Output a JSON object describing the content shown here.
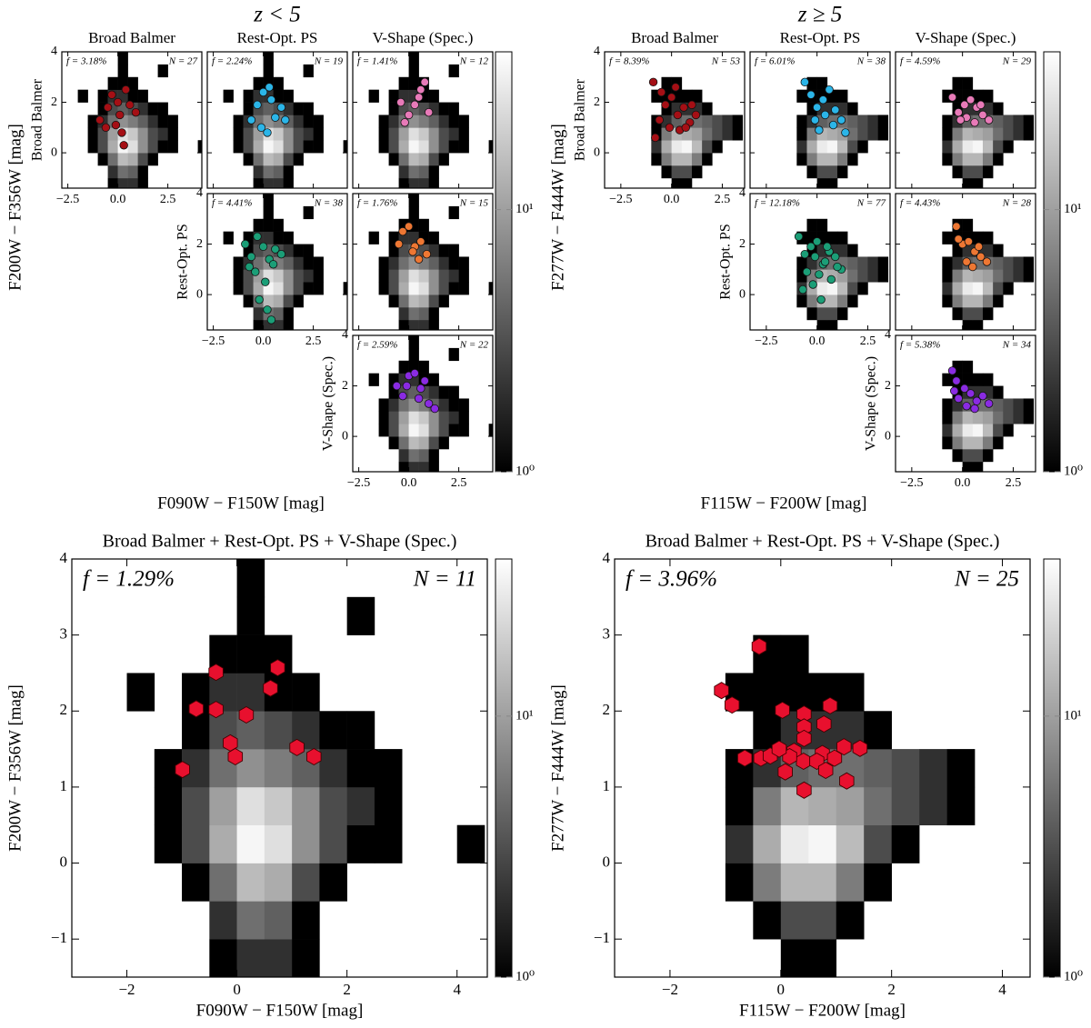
{
  "chart_data": [
    {
      "type": "heatmap",
      "title": "z < 5",
      "columns": [
        "Broad Balmer",
        "Rest-Opt. PS",
        "V-Shape (Spec.)"
      ],
      "xlabel": "F090W − F150W [mag]",
      "ylabel": "F200W − F356W [mag]",
      "xbins": [
        -2.5,
        -2,
        -1.5,
        -1,
        -0.5,
        0,
        0.5,
        1,
        1.5,
        2,
        2.5,
        3,
        3.5,
        4,
        4.5
      ],
      "ybins": [
        -1.5,
        -1,
        -0.5,
        0,
        0.5,
        1,
        1.5,
        2,
        2.5,
        3,
        3.5,
        4
      ],
      "counts": [
        [
          0,
          0,
          0,
          0,
          1,
          2,
          2,
          1,
          0,
          0,
          0,
          0,
          0,
          0
        ],
        [
          0,
          0,
          0,
          0,
          2,
          5,
          4,
          1,
          0,
          0,
          0,
          0,
          0,
          0
        ],
        [
          0,
          0,
          0,
          1,
          5,
          15,
          12,
          3,
          1,
          0,
          0,
          0,
          0,
          0
        ],
        [
          0,
          0,
          1,
          3,
          12,
          35,
          25,
          8,
          3,
          1,
          1,
          0,
          0,
          1
        ],
        [
          0,
          0,
          1,
          3,
          10,
          25,
          18,
          8,
          3,
          2,
          1,
          0,
          0,
          0
        ],
        [
          0,
          0,
          1,
          2,
          5,
          8,
          6,
          4,
          2,
          1,
          1,
          0,
          0,
          0
        ],
        [
          0,
          0,
          0,
          1,
          3,
          4,
          3,
          2,
          1,
          1,
          0,
          0,
          0,
          0
        ],
        [
          0,
          1,
          0,
          1,
          2,
          2,
          1,
          1,
          0,
          0,
          0,
          0,
          0,
          0
        ],
        [
          0,
          0,
          0,
          0,
          1,
          1,
          1,
          0,
          0,
          0,
          0,
          0,
          0,
          0
        ],
        [
          0,
          0,
          0,
          0,
          0,
          1,
          0,
          0,
          0,
          1,
          0,
          0,
          0,
          0
        ],
        [
          0,
          0,
          0,
          0,
          0,
          1,
          0,
          0,
          0,
          0,
          0,
          0,
          0,
          0
        ]
      ],
      "log_color": true,
      "clim": [
        1,
        40
      ],
      "cticks": [
        {
          "value": 1,
          "label": "10⁰"
        },
        {
          "value": 10,
          "label": "10¹"
        }
      ],
      "small": {
        "xlim": [
          -2.8,
          4.2
        ],
        "ylim": [
          -1.4,
          4
        ],
        "xticks": [
          {
            "value": -2.5,
            "label": "−2.5"
          },
          {
            "value": 0,
            "label": "0.0"
          },
          2.5
        ],
        "yticks": [
          0,
          2,
          4
        ],
        "grid": [
          [
            {
              "color": "#a50f15",
              "f": "f = 3.18%",
              "N": "N = 27",
              "x": [
                -0.9,
                -0.5,
                -0.3,
                0.1,
                0.4,
                0.6,
                -0.1,
                0.2,
                0.9,
                -0.6,
                0.3,
                0.0
              ],
              "y": [
                1.3,
                1.8,
                2.3,
                1.5,
                2.5,
                1.9,
                1.1,
                0.8,
                1.6,
                1.0,
                0.3,
                2.0
              ]
            },
            {
              "color": "#2bb5e8",
              "f": "f = 2.24%",
              "N": "N = 19",
              "x": [
                -0.6,
                -0.3,
                0,
                0.3,
                0.6,
                0.9,
                -0.1,
                0.4,
                1.1,
                0.2
              ],
              "y": [
                1.3,
                1.9,
                2.4,
                2.6,
                1.4,
                1.8,
                1.0,
                2.1,
                1.3,
                0.8
              ]
            },
            {
              "color": "#e87ab8",
              "f": "f = 1.41%",
              "N": "N = 12",
              "x": [
                -0.4,
                0.0,
                0.6,
                0.8,
                0.3,
                -0.2,
                1.0,
                0.5
              ],
              "y": [
                2.0,
                1.5,
                2.5,
                2.8,
                1.9,
                1.2,
                1.6,
                2.2
              ]
            }
          ],
          [
            {
              "color": "#1b9e77",
              "f": "f = 4.41%",
              "N": "N = 38",
              "x": [
                -0.9,
                -0.6,
                -0.3,
                0,
                0.3,
                0.6,
                -0.4,
                0.1,
                0.5,
                -0.2,
                0.2,
                0.9,
                -0.7,
                0.4
              ],
              "y": [
                2.0,
                1.5,
                2.3,
                1.9,
                1.4,
                1.8,
                0.9,
                0.5,
                1.2,
                -0.2,
                -0.6,
                1.6,
                1.1,
                -1.0
              ]
            },
            {
              "color": "#ee7733",
              "f": "f = 1.76%",
              "N": "N = 15",
              "x": [
                -0.3,
                0,
                0.3,
                0.6,
                0.9,
                -0.5,
                0.5,
                0.2
              ],
              "y": [
                2.5,
                2.7,
                1.9,
                2.1,
                1.6,
                2.0,
                1.4,
                1.7
              ]
            }
          ],
          [
            {
              "color": "#8a2be2",
              "f": "f = 2.59%",
              "N": "N = 22",
              "x": [
                -0.6,
                -0.3,
                0,
                0.3,
                0.6,
                1.0,
                1.3,
                0.5,
                0.8,
                -0.1
              ],
              "y": [
                2.0,
                1.6,
                2.4,
                2.5,
                1.9,
                1.3,
                1.1,
                1.5,
                2.2,
                2.0
              ]
            }
          ]
        ]
      },
      "combined": {
        "title": "Broad Balmer + Rest-Opt. PS + V-Shape (Spec.)",
        "f": "f = 1.29%",
        "N": "N = 11",
        "color": "#e8102e",
        "xlim": [
          -3,
          4.55
        ],
        "ylim": [
          -1.5,
          4
        ],
        "xticks": [
          {
            "value": -2,
            "label": "−2"
          },
          0,
          2,
          4
        ],
        "yticks": [
          {
            "value": -1,
            "label": "−1"
          },
          0,
          1,
          2,
          3,
          4
        ],
        "x": [
          -0.38,
          0.74,
          0.61,
          -0.74,
          -0.38,
          0.17,
          -0.12,
          -0.03,
          1.09,
          1.4,
          -0.99
        ],
        "y": [
          2.51,
          2.57,
          2.3,
          2.03,
          2.02,
          1.95,
          1.58,
          1.4,
          1.52,
          1.4,
          1.23
        ]
      }
    },
    {
      "type": "heatmap",
      "title": "z ≥ 5",
      "columns": [
        "Broad Balmer",
        "Rest-Opt. PS",
        "V-Shape (Spec.)"
      ],
      "xlabel": "F115W − F200W [mag]",
      "ylabel": "F277W − F444W [mag]",
      "xbins": [
        -2.5,
        -2,
        -1.5,
        -1,
        -0.5,
        0,
        0.5,
        1,
        1.5,
        2,
        2.5,
        3,
        3.5,
        4,
        4.5
      ],
      "ybins": [
        -1.5,
        -1,
        -0.5,
        0,
        0.5,
        1,
        1.5,
        2,
        2.5,
        3,
        3.5,
        4
      ],
      "counts": [
        [
          0,
          0,
          0,
          0,
          0,
          1,
          1,
          0,
          0,
          0,
          0,
          0,
          0,
          0
        ],
        [
          0,
          0,
          0,
          0,
          1,
          3,
          3,
          1,
          0,
          0,
          0,
          0,
          0,
          0
        ],
        [
          0,
          0,
          0,
          1,
          6,
          14,
          14,
          6,
          1,
          0,
          0,
          0,
          0,
          0
        ],
        [
          0,
          0,
          0,
          2,
          12,
          30,
          35,
          15,
          3,
          1,
          0,
          0,
          0,
          0
        ],
        [
          0,
          0,
          0,
          1,
          6,
          14,
          12,
          10,
          5,
          3,
          2,
          1,
          0,
          0
        ],
        [
          0,
          0,
          0,
          1,
          2,
          4,
          5,
          5,
          4,
          3,
          2,
          1,
          0,
          0
        ],
        [
          0,
          0,
          0,
          0,
          1,
          2,
          2,
          2,
          1,
          0,
          0,
          0,
          0,
          0
        ],
        [
          0,
          0,
          0,
          1,
          1,
          1,
          1,
          1,
          0,
          0,
          0,
          0,
          0,
          0
        ],
        [
          0,
          0,
          0,
          0,
          1,
          1,
          0,
          0,
          0,
          0,
          0,
          0,
          0,
          0
        ],
        [
          0,
          0,
          0,
          0,
          0,
          0,
          0,
          0,
          0,
          0,
          0,
          0,
          0,
          0
        ],
        [
          0,
          0,
          0,
          0,
          0,
          0,
          0,
          0,
          0,
          0,
          0,
          0,
          0,
          0
        ]
      ],
      "log_color": true,
      "clim": [
        1,
        40
      ],
      "cticks": [
        {
          "value": 1,
          "label": "10⁰"
        },
        {
          "value": 10,
          "label": "10¹"
        }
      ],
      "small": {
        "xlim": [
          -3.3,
          3.6
        ],
        "ylim": [
          -1.4,
          4
        ],
        "xticks": [
          {
            "value": -2.5,
            "label": "−2.5"
          },
          {
            "value": 0,
            "label": "0.0"
          },
          2.5
        ],
        "yticks": [
          0,
          2,
          4
        ],
        "grid": [
          [
            {
              "color": "#a50f15",
              "f": "f = 8.39%",
              "N": "N = 53",
              "x": [
                -0.9,
                -0.5,
                -0.3,
                0,
                0.3,
                0.6,
                0.9,
                1.2,
                -0.6,
                -0.1,
                0.4,
                0.7,
                -0.8,
                0.2,
                1.0
              ],
              "y": [
                2.8,
                2.4,
                1.9,
                2.2,
                1.5,
                1.8,
                1.2,
                1.5,
                1.3,
                1.0,
                0.9,
                1.0,
                0.6,
                2.6,
                1.9
              ]
            },
            {
              "color": "#2bb5e8",
              "f": "f = 6.01%",
              "N": "N = 38",
              "x": [
                -0.6,
                -0.3,
                0,
                0.3,
                0.6,
                0.9,
                1.2,
                -0.1,
                0.4,
                0.8,
                0.1,
                1.4
              ],
              "y": [
                2.8,
                2.3,
                1.8,
                2.1,
                2.5,
                1.7,
                1.3,
                1.3,
                1.5,
                1.1,
                0.9,
                0.8
              ]
            },
            {
              "color": "#e87ab8",
              "f": "f = 4.59%",
              "N": "N = 29",
              "x": [
                -0.5,
                -0.2,
                0.1,
                0.4,
                0.7,
                1.0,
                1.3,
                0.2,
                0.6,
                0.9,
                -0.1
              ],
              "y": [
                2.2,
                1.6,
                1.9,
                2.1,
                1.8,
                1.5,
                1.3,
                1.4,
                1.2,
                1.9,
                1.3
              ]
            }
          ],
          [
            {
              "color": "#1b9e77",
              "f": "f = 12.18%",
              "N": "N = 77",
              "x": [
                -0.9,
                -0.6,
                -0.3,
                0,
                0.3,
                0.6,
                0.9,
                1.2,
                -0.5,
                -0.2,
                0.1,
                0.4,
                0.7,
                1.0,
                -0.7,
                0.2,
                0.5,
                -0.1
              ],
              "y": [
                2.3,
                1.6,
                1.9,
                2.1,
                1.2,
                1.7,
                1.5,
                1.0,
                0.9,
                0.4,
                0.8,
                1.3,
                0.6,
                1.1,
                0.2,
                -0.2,
                1.9,
                1.5
              ]
            },
            {
              "color": "#ee7733",
              "f": "f = 4.43%",
              "N": "N = 28",
              "x": [
                -0.3,
                0,
                0.3,
                0.6,
                0.9,
                1.2,
                0.2,
                0.5,
                -0.2,
                0.8
              ],
              "y": [
                2.7,
                2.0,
                2.1,
                1.7,
                1.5,
                1.3,
                1.3,
                1.1,
                2.2,
                1.9
              ]
            }
          ],
          [
            {
              "color": "#8a2be2",
              "f": "f = 5.38%",
              "N": "N = 34",
              "x": [
                -0.5,
                -0.2,
                0.1,
                0.4,
                0.7,
                1.0,
                1.3,
                -0.3,
                0.2,
                0.6,
                -0.4
              ],
              "y": [
                2.6,
                1.5,
                1.9,
                1.7,
                1.4,
                1.6,
                1.3,
                2.2,
                1.2,
                1.1,
                1.8
              ]
            }
          ]
        ]
      },
      "combined": {
        "title": "Broad Balmer + Rest-Opt. PS + V-Shape (Spec.)",
        "f": "f = 3.96%",
        "N": "N = 25",
        "color": "#e8102e",
        "xlim": [
          -3,
          4.5
        ],
        "ylim": [
          -1.5,
          4
        ],
        "xticks": [
          {
            "value": -2,
            "label": "−2"
          },
          0,
          2,
          4
        ],
        "yticks": [
          {
            "value": -1,
            "label": "−1"
          },
          0,
          1,
          2,
          3,
          4
        ],
        "x": [
          -0.39,
          -1.07,
          -0.88,
          0.03,
          0.42,
          0.89,
          0.42,
          0.78,
          0.42,
          -0.36,
          -0.19,
          0.24,
          0.75,
          1.14,
          1.43,
          -0.65,
          0.08,
          0.41,
          0.65,
          0.81,
          0.97,
          0.16,
          1.19,
          0.42,
          -0.03
        ],
        "y": [
          2.85,
          2.27,
          2.08,
          2.01,
          1.96,
          2.07,
          1.79,
          1.83,
          1.64,
          1.38,
          1.41,
          1.47,
          1.44,
          1.53,
          1.51,
          1.38,
          1.2,
          1.34,
          1.34,
          1.22,
          1.38,
          1.4,
          1.08,
          0.96,
          1.5
        ]
      }
    }
  ]
}
